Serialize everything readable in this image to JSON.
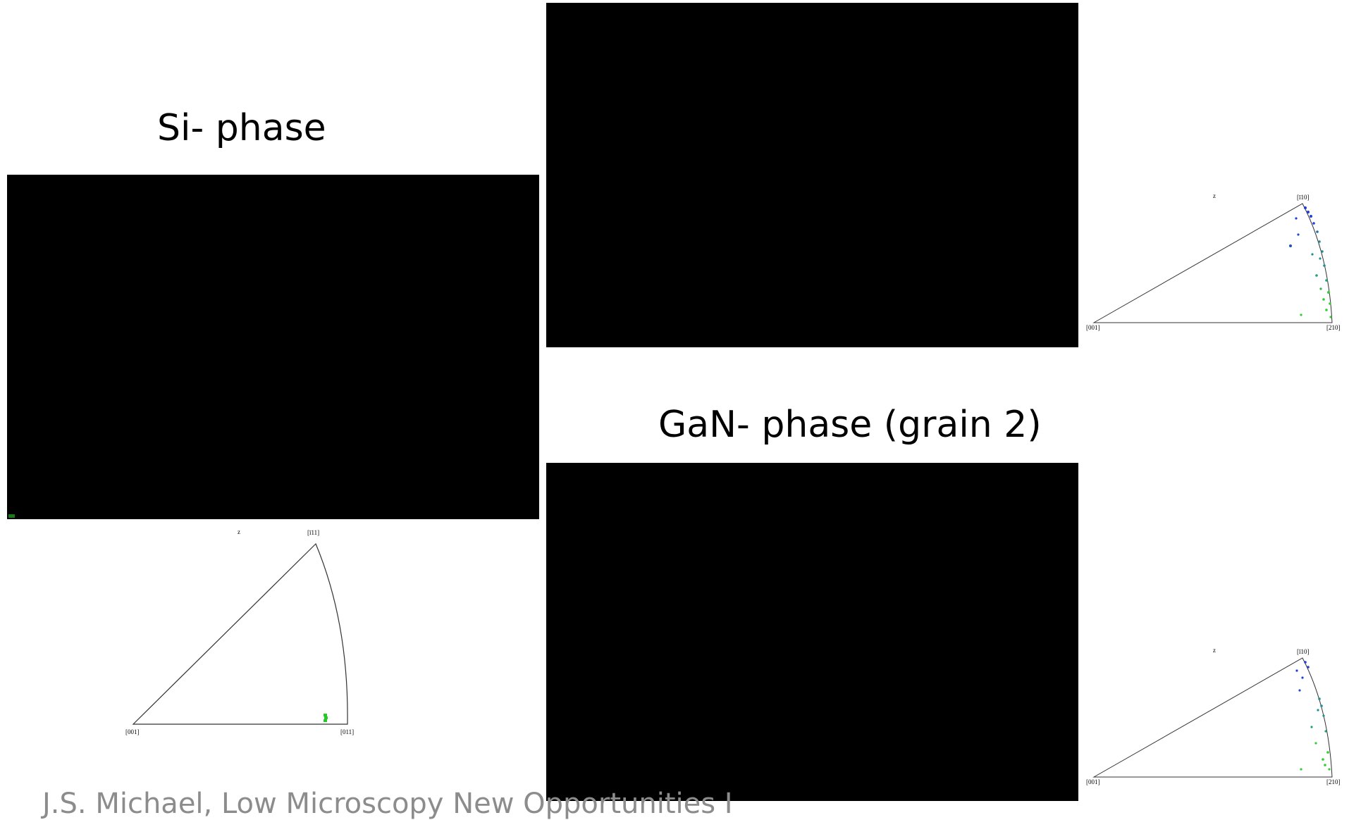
{
  "slide": {
    "si_title": "Si- phase",
    "gan_grain2_title": "GaN- phase (grain 2)",
    "footer": "J.S. Michael, Low Microscopy New Opportunities I"
  },
  "colors": {
    "map_background": "#000000",
    "si_points": "#22cc22",
    "gan_blue": "#1f3fd6",
    "gan_teal": "#1f8f8f",
    "gan_green": "#33cc33"
  },
  "si_ipf": {
    "axis_label": "z",
    "corner_top": "[ī11]",
    "corner_left": "[001]",
    "corner_right": "[011]"
  },
  "gan_ipf_top": {
    "axis_label": "z",
    "corner_top": "[ī10]",
    "corner_left": "[001]",
    "corner_right": "[210]"
  },
  "gan_ipf_bottom": {
    "axis_label": "z",
    "corner_top": "[ī10]",
    "corner_left": "[001]",
    "corner_right": "[210]"
  }
}
